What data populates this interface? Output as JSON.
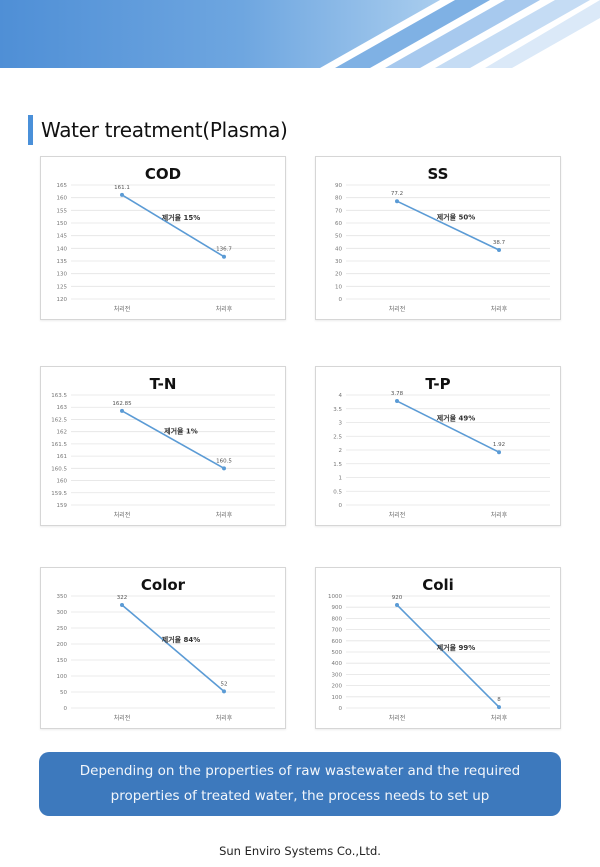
{
  "section": {
    "title": "Water treatment(Plasma)"
  },
  "colors": {
    "accent": "#4a90d9",
    "line": "#5b9bd5",
    "banner": "#3d79bd"
  },
  "chart_data": [
    {
      "type": "line",
      "title": "COD",
      "categories": [
        "처리전",
        "처리후"
      ],
      "values": [
        161.1,
        136.7
      ],
      "data_labels": [
        "161.1",
        "136.7"
      ],
      "annotation": "제거율 15%",
      "ylim": [
        120,
        165
      ],
      "yticks": [
        120,
        125,
        130,
        135,
        140,
        145,
        150,
        155,
        160,
        165
      ],
      "ytick_labels": [
        "120",
        "125",
        "130",
        "135",
        "140",
        "145",
        "150",
        "155",
        "160",
        "165"
      ],
      "grid": true
    },
    {
      "type": "line",
      "title": "SS",
      "categories": [
        "처리전",
        "처리후"
      ],
      "values": [
        77.2,
        38.7
      ],
      "data_labels": [
        "77.2",
        "38.7"
      ],
      "annotation": "제거율 50%",
      "ylim": [
        0,
        90
      ],
      "yticks": [
        0,
        10,
        20,
        30,
        40,
        50,
        60,
        70,
        80,
        90
      ],
      "ytick_labels": [
        "0",
        "10",
        "20",
        "30",
        "40",
        "50",
        "60",
        "70",
        "80",
        "90"
      ],
      "grid": true
    },
    {
      "type": "line",
      "title": "T-N",
      "categories": [
        "처리전",
        "처리후"
      ],
      "values": [
        162.85,
        160.5
      ],
      "data_labels": [
        "162.85",
        "160.5"
      ],
      "annotation": "제거율 1%",
      "ylim": [
        159,
        163.5
      ],
      "yticks": [
        159,
        159.5,
        160,
        160.5,
        161,
        161.5,
        162,
        162.5,
        163,
        163.5
      ],
      "ytick_labels": [
        "159",
        "159.5",
        "160",
        "160.5",
        "161",
        "161.5",
        "162",
        "162.5",
        "163",
        "163.5"
      ],
      "grid": true
    },
    {
      "type": "line",
      "title": "T-P",
      "categories": [
        "처리전",
        "처리후"
      ],
      "values": [
        3.78,
        1.92
      ],
      "data_labels": [
        "3.78",
        "1.92"
      ],
      "annotation": "제거율 49%",
      "ylim": [
        0,
        4
      ],
      "yticks": [
        0,
        0.5,
        1,
        1.5,
        2,
        2.5,
        3,
        3.5,
        4
      ],
      "ytick_labels": [
        "0",
        "0.5",
        "1",
        "1.5",
        "2",
        "2.5",
        "3",
        "3.5",
        "4"
      ],
      "grid": true
    },
    {
      "type": "line",
      "title": "Color",
      "categories": [
        "처리전",
        "처리후"
      ],
      "values": [
        322,
        52
      ],
      "data_labels": [
        "322",
        "52"
      ],
      "annotation": "제거율 84%",
      "ylim": [
        0,
        350
      ],
      "yticks": [
        0,
        50,
        100,
        150,
        200,
        250,
        300,
        350
      ],
      "ytick_labels": [
        "0",
        "50",
        "100",
        "150",
        "200",
        "250",
        "300",
        "350"
      ],
      "grid": true
    },
    {
      "type": "line",
      "title": "Coli",
      "categories": [
        "처리전",
        "처리후"
      ],
      "values": [
        920,
        8
      ],
      "data_labels": [
        "920",
        "8"
      ],
      "annotation": "제거율 99%",
      "ylim": [
        0,
        1000
      ],
      "yticks": [
        0,
        100,
        200,
        300,
        400,
        500,
        600,
        700,
        800,
        900,
        1000
      ],
      "ytick_labels": [
        "0",
        "100",
        "200",
        "300",
        "400",
        "500",
        "600",
        "700",
        "800",
        "900",
        "1000"
      ],
      "grid": true
    }
  ],
  "banner": {
    "text": "Depending on the properties of raw wastewater and the required properties of treated water, the process needs to set up"
  },
  "footer": {
    "company": "Sun Enviro Systems Co.,Ltd."
  }
}
